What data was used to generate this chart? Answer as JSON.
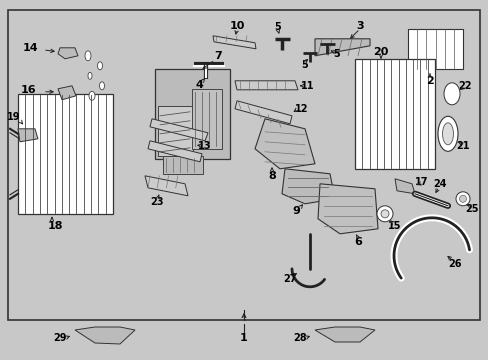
{
  "bg_color": "#c8c8c8",
  "box_bg": "#d0d0d0",
  "border_color": "#222222",
  "line_color": "#222222",
  "text_color": "#000000",
  "fig_width": 4.89,
  "fig_height": 3.6,
  "dpi": 100
}
